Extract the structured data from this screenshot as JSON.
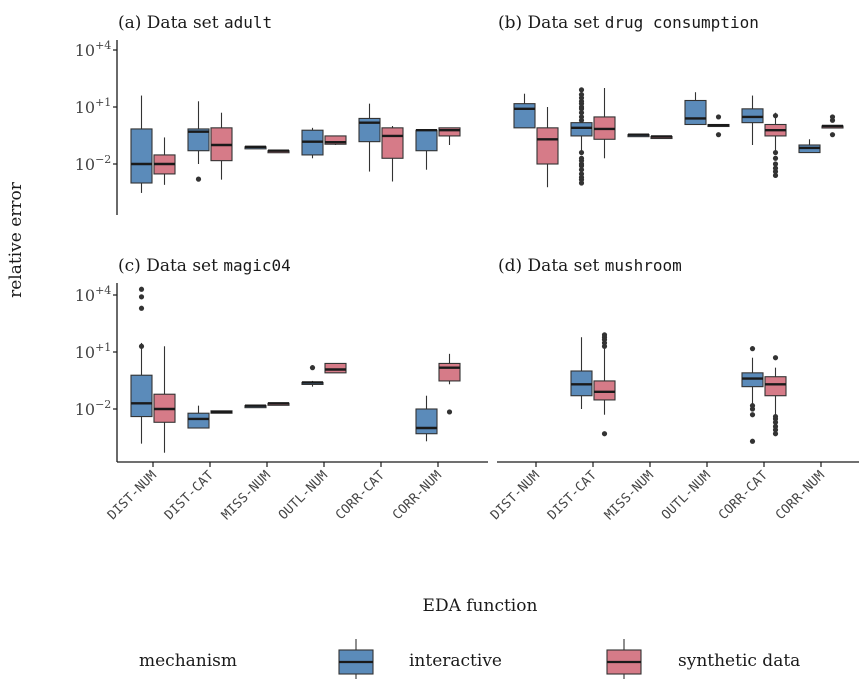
{
  "chart_data": {
    "type": "box",
    "title": "",
    "xlabel": "EDA function",
    "ylabel": "relative error",
    "yscale": "log10",
    "yticks": [
      {
        "value": 10000,
        "base": "10",
        "exp": "+4"
      },
      {
        "value": 10,
        "base": "10",
        "exp": "+1"
      },
      {
        "value": 0.01,
        "base": "10",
        "exp": "−2"
      }
    ],
    "categories": [
      "DIST-NUM",
      "DIST-CAT",
      "MISS-NUM",
      "OUTL-NUM",
      "CORR-CAT",
      "CORR-NUM"
    ],
    "legend": {
      "title": "mechanism",
      "placement": "bottom",
      "items": [
        {
          "label": "interactive",
          "color": "#5b8bba"
        },
        {
          "label": "synthetic data",
          "color": "#d67b88"
        }
      ]
    },
    "panels": [
      {
        "prefix": "(a) Data set ",
        "dataset": "adult",
        "boxes": {
          "interactive": {
            "DIST-NUM": {
              "lower": 0.0003,
              "q1": 0.001,
              "median": 0.01,
              "q3": 0.7,
              "upper": 40,
              "outliers": []
            },
            "DIST-CAT": {
              "lower": 0.01,
              "q1": 0.05,
              "median": 0.5,
              "q3": 0.7,
              "upper": 20,
              "outliers": [
                0.0016
              ]
            },
            "MISS-NUM": {
              "lower": 0.08,
              "q1": 0.08,
              "median": 0.08,
              "q3": 0.08,
              "upper": 0.08,
              "outliers": []
            },
            "OUTL-NUM": {
              "lower": 0.02,
              "q1": 0.03,
              "median": 0.15,
              "q3": 0.6,
              "upper": 0.8,
              "outliers": []
            },
            "CORR-CAT": {
              "lower": 0.004,
              "q1": 0.15,
              "median": 1.5,
              "q3": 2.5,
              "upper": 15,
              "outliers": []
            },
            "CORR-NUM": {
              "lower": 0.005,
              "q1": 0.05,
              "median": 0.6,
              "q3": 0.6,
              "upper": 0.6,
              "outliers": []
            }
          },
          "synthetic data": {
            "DIST-NUM": {
              "lower": 0.0008,
              "q1": 0.003,
              "median": 0.01,
              "q3": 0.03,
              "upper": 0.25,
              "outliers": []
            },
            "DIST-CAT": {
              "lower": 0.0015,
              "q1": 0.015,
              "median": 0.1,
              "q3": 0.8,
              "upper": 5,
              "outliers": []
            },
            "MISS-NUM": {
              "lower": 0.05,
              "q1": 0.05,
              "median": 0.05,
              "q3": 0.05,
              "upper": 0.05,
              "outliers": []
            },
            "OUTL-NUM": {
              "lower": 0.1,
              "q1": 0.11,
              "median": 0.14,
              "q3": 0.3,
              "upper": 0.3,
              "outliers": []
            },
            "CORR-CAT": {
              "lower": 0.0012,
              "q1": 0.02,
              "median": 0.3,
              "q3": 0.8,
              "upper": 1,
              "outliers": []
            },
            "CORR-NUM": {
              "lower": 0.1,
              "q1": 0.3,
              "median": 0.6,
              "q3": 0.8,
              "upper": 0.8,
              "outliers": []
            }
          }
        }
      },
      {
        "prefix": "(b) Data set ",
        "dataset": "drug consumption",
        "boxes": {
          "interactive": {
            "DIST-NUM": {
              "lower": 0.8,
              "q1": 0.8,
              "median": 8,
              "q3": 15,
              "upper": 50,
              "outliers": []
            },
            "DIST-CAT": {
              "lower": 0.05,
              "q1": 0.3,
              "median": 0.8,
              "q3": 1.5,
              "upper": 60,
              "outliers": [
                0.001,
                0.0015,
                0.002,
                0.003,
                0.005,
                0.008,
                0.01,
                0.015,
                0.02,
                0.04,
                2,
                3,
                5,
                8,
                10,
                15,
                20,
                30,
                45,
                80
              ]
            },
            "MISS-NUM": {
              "lower": 0.35,
              "q1": 0.35,
              "median": 0.35,
              "q3": 0.35,
              "upper": 0.35,
              "outliers": []
            },
            "OUTL-NUM": {
              "lower": 1.2,
              "q1": 1.2,
              "median": 2.5,
              "q3": 22,
              "upper": 60,
              "outliers": []
            },
            "CORR-CAT": {
              "lower": 0.1,
              "q1": 1.5,
              "median": 3,
              "q3": 8,
              "upper": 40,
              "outliers": []
            },
            "CORR-NUM": {
              "lower": 0.04,
              "q1": 0.04,
              "median": 0.07,
              "q3": 0.1,
              "upper": 0.2,
              "outliers": []
            }
          },
          "synthetic data": {
            "DIST-NUM": {
              "lower": 0.0006,
              "q1": 0.01,
              "median": 0.2,
              "q3": 0.8,
              "upper": 10,
              "outliers": []
            },
            "DIST-CAT": {
              "lower": 0.02,
              "q1": 0.2,
              "median": 0.7,
              "q3": 3,
              "upper": 100,
              "outliers": []
            },
            "MISS-NUM": {
              "lower": 0.28,
              "q1": 0.28,
              "median": 0.28,
              "q3": 0.28,
              "upper": 0.28,
              "outliers": []
            },
            "OUTL-NUM": {
              "lower": 1,
              "q1": 1,
              "median": 1.1,
              "q3": 1.2,
              "upper": 1.2,
              "outliers": [
                0.35,
                3
              ]
            },
            "CORR-CAT": {
              "lower": 0.05,
              "q1": 0.3,
              "median": 0.6,
              "q3": 1.2,
              "upper": 5,
              "outliers": [
                0.0025,
                0.004,
                0.006,
                0.01,
                0.02,
                0.04,
                3.5
              ]
            },
            "CORR-NUM": {
              "lower": 1,
              "q1": 1,
              "median": 1,
              "q3": 1,
              "upper": 1,
              "outliers": [
                0.35,
                2,
                3
              ]
            }
          }
        }
      },
      {
        "prefix": "(c) Data set ",
        "dataset": "magic04",
        "boxes": {
          "interactive": {
            "DIST-NUM": {
              "lower": 0.00015,
              "q1": 0.004,
              "median": 0.02,
              "q3": 0.6,
              "upper": 30,
              "outliers": [
                20,
                2000,
                8000,
                20000
              ]
            },
            "DIST-CAT": {
              "lower": 0.001,
              "q1": 0.001,
              "median": 0.003,
              "q3": 0.006,
              "upper": 0.015,
              "outliers": []
            },
            "MISS-NUM": {
              "lower": 0.015,
              "q1": 0.015,
              "median": 0.015,
              "q3": 0.015,
              "upper": 0.015,
              "outliers": []
            },
            "OUTL-NUM": {
              "lower": 0.15,
              "q1": 0.2,
              "median": 0.25,
              "q3": 0.25,
              "upper": 0.3,
              "outliers": [
                1.5
              ]
            },
            "CORR-CAT": null,
            "CORR-NUM": {
              "lower": 0.0002,
              "q1": 0.0005,
              "median": 0.001,
              "q3": 0.01,
              "upper": 0.05,
              "outliers": []
            }
          },
          "synthetic data": {
            "DIST-NUM": {
              "lower": 5e-05,
              "q1": 0.002,
              "median": 0.01,
              "q3": 0.06,
              "upper": 20,
              "outliers": []
            },
            "DIST-CAT": {
              "lower": 0.006,
              "q1": 0.006,
              "median": 0.007,
              "q3": 0.008,
              "upper": 0.008,
              "outliers": []
            },
            "MISS-NUM": {
              "lower": 0.02,
              "q1": 0.02,
              "median": 0.02,
              "q3": 0.02,
              "upper": 0.02,
              "outliers": []
            },
            "OUTL-NUM": {
              "lower": 0.8,
              "q1": 0.8,
              "median": 1.2,
              "q3": 2.5,
              "upper": 2.5,
              "outliers": []
            },
            "CORR-CAT": null,
            "CORR-NUM": {
              "lower": 0.2,
              "q1": 0.3,
              "median": 1.5,
              "q3": 2.5,
              "upper": 8,
              "outliers": [
                0.007
              ]
            }
          }
        }
      },
      {
        "prefix": "(d) Data set ",
        "dataset": "mushroom",
        "boxes": {
          "interactive": {
            "DIST-NUM": null,
            "DIST-CAT": {
              "lower": 0.01,
              "q1": 0.05,
              "median": 0.2,
              "q3": 1,
              "upper": 60,
              "outliers": []
            },
            "MISS-NUM": null,
            "OUTL-NUM": null,
            "CORR-CAT": {
              "lower": 0.01,
              "q1": 0.15,
              "median": 0.4,
              "q3": 0.8,
              "upper": 5,
              "outliers": [
                0.0002,
                0.005,
                0.01,
                0.015,
                15
              ]
            },
            "CORR-NUM": null
          },
          "synthetic data": {
            "DIST-NUM": null,
            "DIST-CAT": {
              "lower": 0.005,
              "q1": 0.03,
              "median": 0.08,
              "q3": 0.3,
              "upper": 15,
              "outliers": [
                0.0005,
                20,
                30,
                45,
                60,
                80
              ]
            },
            "MISS-NUM": null,
            "OUTL-NUM": null,
            "CORR-CAT": {
              "lower": 0.005,
              "q1": 0.05,
              "median": 0.2,
              "q3": 0.5,
              "upper": 1.5,
              "outliers": [
                0.0005,
                0.0008,
                0.0012,
                0.002,
                0.003,
                0.004,
                5
              ]
            },
            "CORR-NUM": null
          }
        }
      }
    ]
  }
}
